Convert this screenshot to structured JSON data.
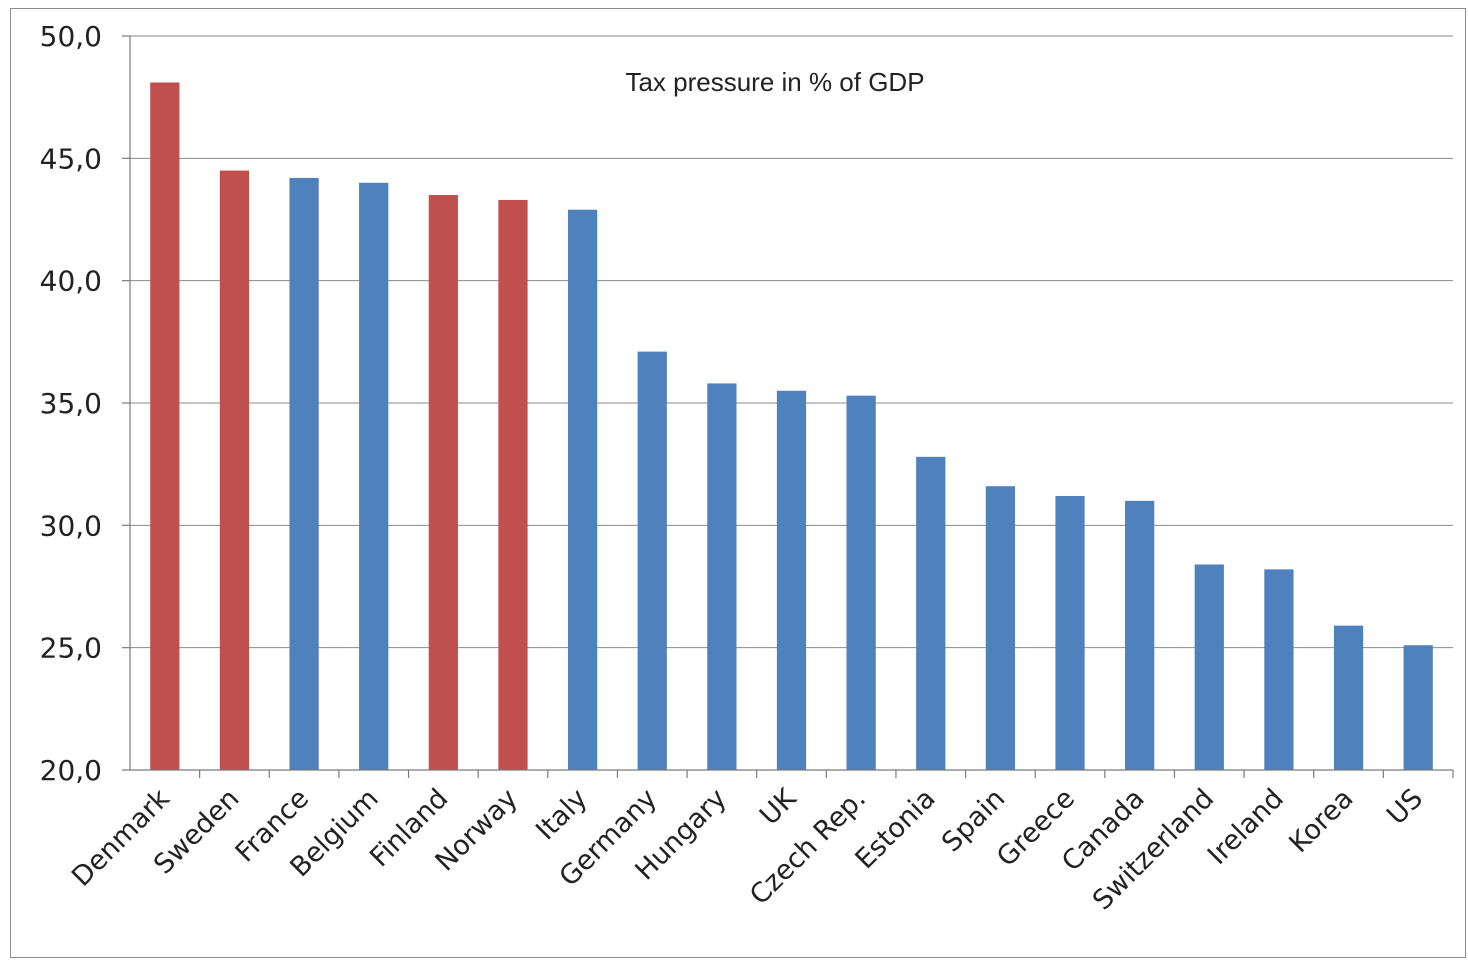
{
  "chart_data": {
    "type": "bar",
    "title": "Tax pressure in % of GDP",
    "xlabel": "",
    "ylabel": "",
    "ylim": [
      20,
      50
    ],
    "yticks": [
      "20,0",
      "25,0",
      "30,0",
      "35,0",
      "40,0",
      "45,0",
      "50,0"
    ],
    "ytick_values": [
      20,
      25,
      30,
      35,
      40,
      45,
      50
    ],
    "grid": true,
    "legend": "none",
    "highlight_color": "#C0504D",
    "default_color": "#4F81BD",
    "categories": [
      "Denmark",
      "Sweden",
      "France",
      "Belgium",
      "Finland",
      "Norway",
      "Italy",
      "Germany",
      "Hungary",
      "UK",
      "Czech Rep.",
      "Estonia",
      "Spain",
      "Greece",
      "Canada",
      "Switzerland",
      "Ireland",
      "Korea",
      "US"
    ],
    "values": [
      48.1,
      44.5,
      44.2,
      44.0,
      43.5,
      43.3,
      42.9,
      37.1,
      35.8,
      35.5,
      35.3,
      32.8,
      31.6,
      31.2,
      31.0,
      28.4,
      28.2,
      25.9,
      25.1
    ],
    "colors": [
      "#C0504D",
      "#C0504D",
      "#4F81BD",
      "#4F81BD",
      "#C0504D",
      "#C0504D",
      "#4F81BD",
      "#4F81BD",
      "#4F81BD",
      "#4F81BD",
      "#4F81BD",
      "#4F81BD",
      "#4F81BD",
      "#4F81BD",
      "#4F81BD",
      "#4F81BD",
      "#4F81BD",
      "#4F81BD",
      "#4F81BD"
    ]
  }
}
